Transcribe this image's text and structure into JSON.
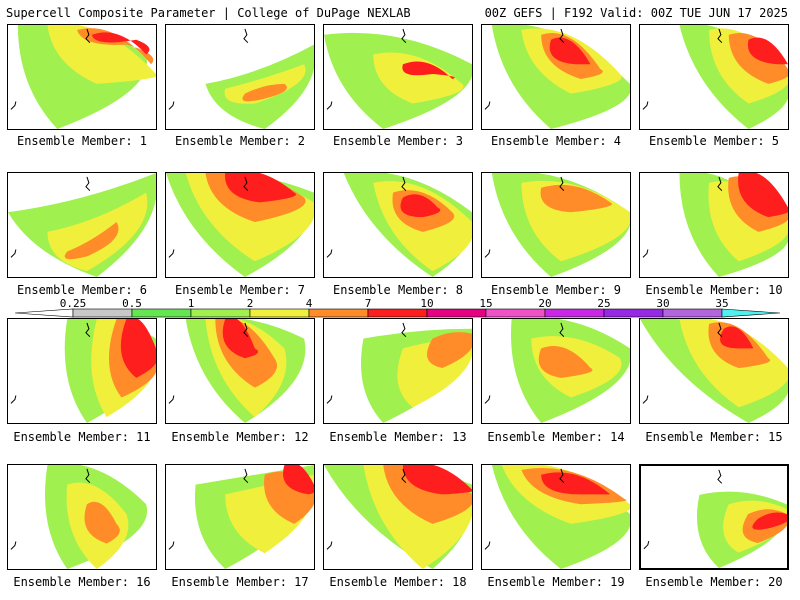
{
  "header": {
    "left": "Supercell Composite Parameter | College of DuPage NEXLAB",
    "right": "00Z GEFS | F192 Valid: 00Z TUE JUN 17 2025"
  },
  "colorbar": {
    "labels": [
      "0.25",
      "0.5",
      "1",
      "2",
      "4",
      "7",
      "10",
      "15",
      "20",
      "25",
      "30",
      "35"
    ],
    "colors": [
      "#c8c8c8",
      "#64e650",
      "#a0f050",
      "#f0f03c",
      "#ff8c28",
      "#ff1e1e",
      "#e60082",
      "#f050c8",
      "#c828e6",
      "#9628e6",
      "#b464dc",
      "#50f0f0"
    ]
  },
  "panels": [
    {
      "label": "Ensemble Member: 1"
    },
    {
      "label": "Ensemble Member: 2"
    },
    {
      "label": "Ensemble Member: 3"
    },
    {
      "label": "Ensemble Member: 4"
    },
    {
      "label": "Ensemble Member: 5"
    },
    {
      "label": "Ensemble Member: 6"
    },
    {
      "label": "Ensemble Member: 7"
    },
    {
      "label": "Ensemble Member: 8"
    },
    {
      "label": "Ensemble Member: 9"
    },
    {
      "label": "Ensemble Member: 10"
    },
    {
      "label": "Ensemble Member: 11"
    },
    {
      "label": "Ensemble Member: 12"
    },
    {
      "label": "Ensemble Member: 13"
    },
    {
      "label": "Ensemble Member: 14"
    },
    {
      "label": "Ensemble Member: 15"
    },
    {
      "label": "Ensemble Member: 16"
    },
    {
      "label": "Ensemble Member: 17"
    },
    {
      "label": "Ensemble Member: 18"
    },
    {
      "label": "Ensemble Member: 19"
    },
    {
      "label": "Ensemble Member: 20"
    }
  ]
}
